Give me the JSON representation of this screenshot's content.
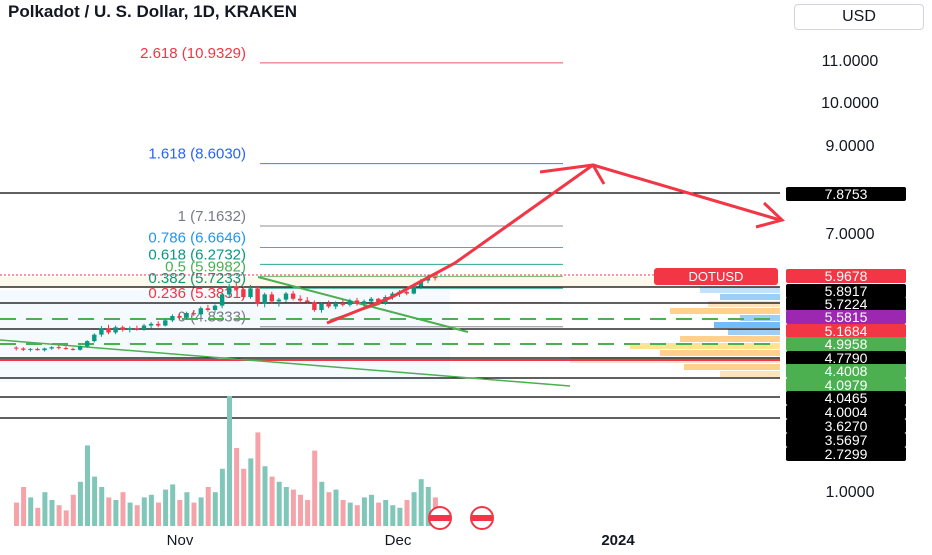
{
  "header": {
    "title": "Polkadot / U. S. Dollar, 1D, KRAKEN",
    "currency": "USD"
  },
  "chart_data": {
    "type": "candlestick",
    "symbol_label": "DOTUSD",
    "last_price": "5.9678",
    "y_axis_ticks": [
      "11.0000",
      "10.0000",
      "9.0000",
      "7.0000",
      "1.0000"
    ],
    "x_axis_ticks": [
      "Nov",
      "Dec",
      "2024"
    ],
    "fib_levels": [
      {
        "label": "2.618 (10.9329)",
        "value": 10.9329,
        "color": "#f23645"
      },
      {
        "label": "1.618 (8.6030)",
        "value": 8.603,
        "color": "#2962ff"
      },
      {
        "label": "1 (7.1632)",
        "value": 7.1632,
        "color": "#787b86"
      },
      {
        "label": "0.786 (6.6646)",
        "value": 6.6646,
        "color": "#2196f3"
      },
      {
        "label": "0.618 (6.2732)",
        "value": 6.2732,
        "color": "#089981"
      },
      {
        "label": "0.5 (5.9982)",
        "value": 5.9982,
        "color": "#4caf50"
      },
      {
        "label": "0.382 (5.7233)",
        "value": 5.7233,
        "color": "#089981"
      },
      {
        "label": "0.236 (5.3831)",
        "value": 5.3831,
        "color": "#f23645"
      },
      {
        "label": "0 (4.8333)",
        "value": 4.8333,
        "color": "#787b86"
      }
    ],
    "price_labels": [
      {
        "text": "7.8753",
        "bg": "#000000",
        "color": "#ffffff"
      },
      {
        "text": "5.9678",
        "bg": "#f23645",
        "color": "#ffffff"
      },
      {
        "text": "5.8917",
        "bg": "#000000",
        "color": "#ffffff"
      },
      {
        "text": "5.7224",
        "bg": "#000000",
        "color": "#ffffff"
      },
      {
        "text": "5.5815",
        "bg": "#9c27b0",
        "color": "#ffffff"
      },
      {
        "text": "5.1684",
        "bg": "#f23645",
        "color": "#ffffff"
      },
      {
        "text": "4.9958",
        "bg": "#4caf50",
        "color": "#ffffff"
      },
      {
        "text": "4.7790",
        "bg": "#000000",
        "color": "#ffffff"
      },
      {
        "text": "4.4008",
        "bg": "#4caf50",
        "color": "#ffffff"
      },
      {
        "text": "4.0979",
        "bg": "#4caf50",
        "color": "#ffffff"
      },
      {
        "text": "4.0465",
        "bg": "#000000",
        "color": "#ffffff"
      },
      {
        "text": "4.0004",
        "bg": "#000000",
        "color": "#ffffff"
      },
      {
        "text": "3.6270",
        "bg": "#000000",
        "color": "#ffffff"
      },
      {
        "text": "3.5697",
        "bg": "#000000",
        "color": "#ffffff"
      },
      {
        "text": "2.7299",
        "bg": "#000000",
        "color": "#ffffff"
      }
    ],
    "candles": [
      {
        "o": 4.35,
        "h": 4.38,
        "l": 4.28,
        "c": 4.33
      },
      {
        "o": 4.33,
        "h": 4.36,
        "l": 4.27,
        "c": 4.3
      },
      {
        "o": 4.3,
        "h": 4.34,
        "l": 4.26,
        "c": 4.32
      },
      {
        "o": 4.32,
        "h": 4.35,
        "l": 4.28,
        "c": 4.29
      },
      {
        "o": 4.29,
        "h": 4.35,
        "l": 4.26,
        "c": 4.33
      },
      {
        "o": 4.33,
        "h": 4.38,
        "l": 4.3,
        "c": 4.36
      },
      {
        "o": 4.36,
        "h": 4.4,
        "l": 4.31,
        "c": 4.34
      },
      {
        "o": 4.34,
        "h": 4.38,
        "l": 4.3,
        "c": 4.32
      },
      {
        "o": 4.32,
        "h": 4.35,
        "l": 4.28,
        "c": 4.3
      },
      {
        "o": 4.3,
        "h": 4.4,
        "l": 4.28,
        "c": 4.38
      },
      {
        "o": 4.38,
        "h": 4.52,
        "l": 4.35,
        "c": 4.5
      },
      {
        "o": 4.5,
        "h": 4.68,
        "l": 4.47,
        "c": 4.65
      },
      {
        "o": 4.65,
        "h": 4.85,
        "l": 4.6,
        "c": 4.8
      },
      {
        "o": 4.8,
        "h": 4.88,
        "l": 4.66,
        "c": 4.7
      },
      {
        "o": 4.7,
        "h": 4.86,
        "l": 4.66,
        "c": 4.82
      },
      {
        "o": 4.82,
        "h": 4.86,
        "l": 4.72,
        "c": 4.76
      },
      {
        "o": 4.76,
        "h": 4.84,
        "l": 4.7,
        "c": 4.8
      },
      {
        "o": 4.8,
        "h": 4.86,
        "l": 4.74,
        "c": 4.78
      },
      {
        "o": 4.78,
        "h": 4.9,
        "l": 4.74,
        "c": 4.86
      },
      {
        "o": 4.86,
        "h": 4.94,
        "l": 4.8,
        "c": 4.9
      },
      {
        "o": 4.9,
        "h": 4.96,
        "l": 4.82,
        "c": 4.86
      },
      {
        "o": 4.86,
        "h": 5.02,
        "l": 4.84,
        "c": 4.98
      },
      {
        "o": 4.98,
        "h": 5.12,
        "l": 4.94,
        "c": 5.08
      },
      {
        "o": 5.08,
        "h": 5.14,
        "l": 5.0,
        "c": 5.04
      },
      {
        "o": 5.04,
        "h": 5.18,
        "l": 5.0,
        "c": 5.15
      },
      {
        "o": 5.15,
        "h": 5.22,
        "l": 5.08,
        "c": 5.12
      },
      {
        "o": 5.12,
        "h": 5.3,
        "l": 5.1,
        "c": 5.26
      },
      {
        "o": 5.26,
        "h": 5.34,
        "l": 5.18,
        "c": 5.22
      },
      {
        "o": 5.22,
        "h": 5.35,
        "l": 5.16,
        "c": 5.32
      },
      {
        "o": 5.32,
        "h": 5.62,
        "l": 5.26,
        "c": 5.58
      },
      {
        "o": 5.58,
        "h": 5.82,
        "l": 5.5,
        "c": 5.76
      },
      {
        "o": 5.76,
        "h": 5.88,
        "l": 5.66,
        "c": 5.7
      },
      {
        "o": 5.7,
        "h": 5.76,
        "l": 5.46,
        "c": 5.52
      },
      {
        "o": 5.52,
        "h": 5.8,
        "l": 5.48,
        "c": 5.72
      },
      {
        "o": 5.72,
        "h": 5.78,
        "l": 5.3,
        "c": 5.36
      },
      {
        "o": 5.36,
        "h": 5.62,
        "l": 5.28,
        "c": 5.58
      },
      {
        "o": 5.58,
        "h": 5.64,
        "l": 5.36,
        "c": 5.42
      },
      {
        "o": 5.42,
        "h": 5.5,
        "l": 5.3,
        "c": 5.46
      },
      {
        "o": 5.46,
        "h": 5.64,
        "l": 5.4,
        "c": 5.6
      },
      {
        "o": 5.6,
        "h": 5.66,
        "l": 5.44,
        "c": 5.48
      },
      {
        "o": 5.48,
        "h": 5.56,
        "l": 5.38,
        "c": 5.44
      },
      {
        "o": 5.44,
        "h": 5.52,
        "l": 5.36,
        "c": 5.4
      },
      {
        "o": 5.4,
        "h": 5.44,
        "l": 5.18,
        "c": 5.22
      },
      {
        "o": 5.22,
        "h": 5.4,
        "l": 5.16,
        "c": 5.36
      },
      {
        "o": 5.36,
        "h": 5.44,
        "l": 5.26,
        "c": 5.3
      },
      {
        "o": 5.3,
        "h": 5.42,
        "l": 5.24,
        "c": 5.38
      },
      {
        "o": 5.38,
        "h": 5.46,
        "l": 5.3,
        "c": 5.34
      },
      {
        "o": 5.34,
        "h": 5.48,
        "l": 5.3,
        "c": 5.44
      },
      {
        "o": 5.44,
        "h": 5.5,
        "l": 5.32,
        "c": 5.36
      },
      {
        "o": 5.36,
        "h": 5.46,
        "l": 5.3,
        "c": 5.42
      },
      {
        "o": 5.42,
        "h": 5.52,
        "l": 5.38,
        "c": 5.48
      },
      {
        "o": 5.48,
        "h": 5.5,
        "l": 5.34,
        "c": 5.38
      },
      {
        "o": 5.38,
        "h": 5.56,
        "l": 5.34,
        "c": 5.52
      },
      {
        "o": 5.52,
        "h": 5.64,
        "l": 5.46,
        "c": 5.6
      },
      {
        "o": 5.6,
        "h": 5.68,
        "l": 5.52,
        "c": 5.64
      },
      {
        "o": 5.64,
        "h": 5.7,
        "l": 5.56,
        "c": 5.6
      },
      {
        "o": 5.6,
        "h": 5.8,
        "l": 5.58,
        "c": 5.76
      },
      {
        "o": 5.76,
        "h": 5.94,
        "l": 5.7,
        "c": 5.9
      },
      {
        "o": 5.9,
        "h": 6.04,
        "l": 5.84,
        "c": 5.98
      },
      {
        "o": 5.98,
        "h": 6.02,
        "l": 5.9,
        "c": 5.97
      }
    ],
    "volumes": [
      0.18,
      0.3,
      0.22,
      0.14,
      0.26,
      0.2,
      0.16,
      0.12,
      0.24,
      0.34,
      0.62,
      0.38,
      0.3,
      0.22,
      0.2,
      0.26,
      0.18,
      0.16,
      0.22,
      0.24,
      0.18,
      0.28,
      0.32,
      0.2,
      0.26,
      0.18,
      0.22,
      0.3,
      0.26,
      0.44,
      1.0,
      0.6,
      0.44,
      0.52,
      0.72,
      0.46,
      0.38,
      0.34,
      0.3,
      0.28,
      0.24,
      0.2,
      0.58,
      0.34,
      0.26,
      0.28,
      0.2,
      0.18,
      0.16,
      0.22,
      0.24,
      0.18,
      0.2,
      0.16,
      0.14,
      0.2,
      0.26,
      0.36,
      0.3,
      0.22
    ]
  }
}
